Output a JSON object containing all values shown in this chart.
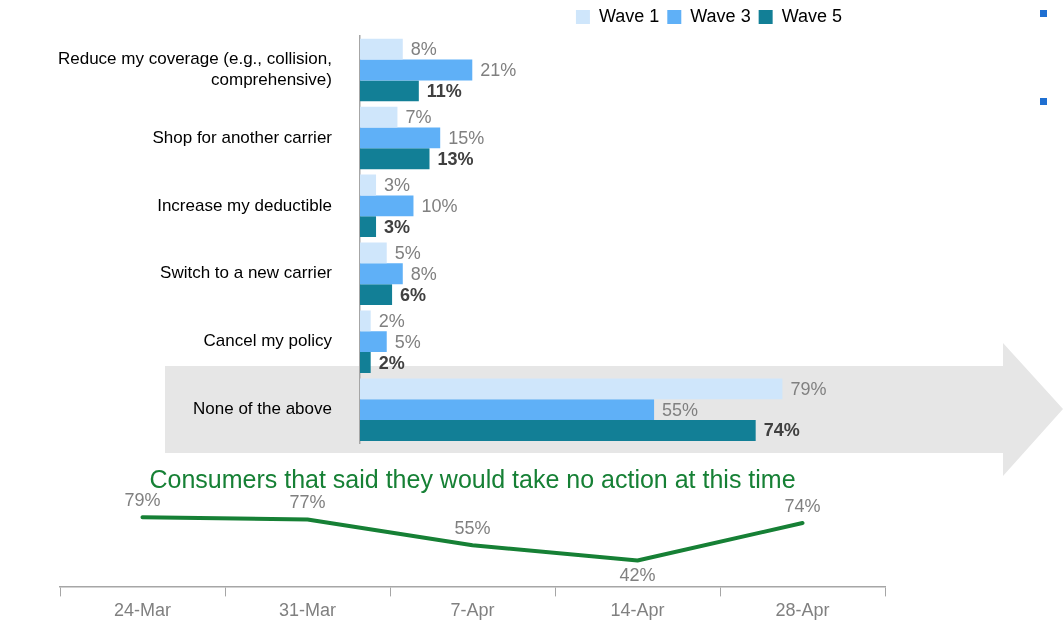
{
  "chart_data": [
    {
      "type": "bar",
      "orientation": "horizontal",
      "legend": "top right",
      "categories": [
        "Reduce my coverage (e.g., collision, comprehensive)",
        "Shop for another carrier",
        "Increase my deductible",
        "Switch to a new carrier",
        "Cancel my policy",
        "None of the above"
      ],
      "series": [
        {
          "name": "Wave 1",
          "color": "#cfe6fb",
          "values": [
            8,
            7,
            3,
            5,
            2,
            79
          ],
          "value_labels": [
            "8%",
            "7%",
            "3%",
            "5%",
            "2%",
            "79%"
          ]
        },
        {
          "name": "Wave 3",
          "color": "#5fb0f7",
          "values": [
            21,
            15,
            10,
            8,
            5,
            55
          ],
          "value_labels": [
            "21%",
            "15%",
            "10%",
            "8%",
            "5%",
            "55%"
          ]
        },
        {
          "name": "Wave 5",
          "color": "#127f96",
          "values": [
            11,
            13,
            3,
            6,
            2,
            74
          ],
          "value_labels": [
            "11%",
            "13%",
            "3%",
            "6%",
            "2%",
            "74%"
          ]
        }
      ]
    },
    {
      "type": "line",
      "title": "Consumers that said they would take no action at this time",
      "tick_labels": "x",
      "categories": [
        "24-Mar",
        "31-Mar",
        "7-Apr",
        "14-Apr",
        "28-Apr"
      ],
      "series": [
        {
          "color": "#168035",
          "values": [
            79,
            77,
            55,
            42,
            74
          ],
          "value_labels": [
            "79%",
            "77%",
            "55%",
            "42%",
            "74%"
          ]
        }
      ]
    }
  ]
}
